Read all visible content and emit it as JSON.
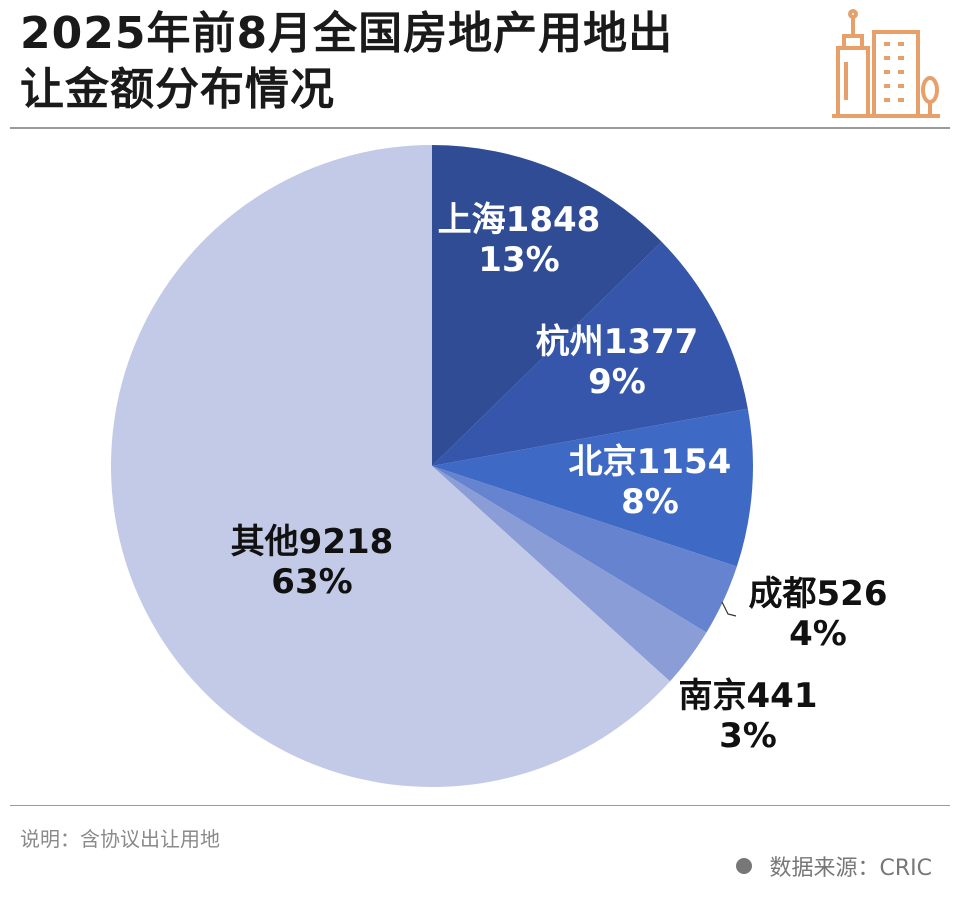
{
  "title_lines": [
    "2025年前8月全国房地产用地出",
    "让金额分布情况"
  ],
  "note": "说明：含协议出让用地",
  "source": "数据来源：CRIC",
  "icons": {
    "logo": "building-icon",
    "source_bullet": "dot-icon"
  },
  "chart_data": {
    "type": "pie",
    "start": "top",
    "direction": "clockwise",
    "categories": [
      "上海",
      "杭州",
      "北京",
      "成都",
      "南京",
      "其他"
    ],
    "values": [
      1848,
      1377,
      1154,
      526,
      441,
      9218
    ],
    "percent_labels": [
      "13%",
      "9%",
      "8%",
      "4%",
      "3%",
      "63%"
    ],
    "value_labels": [
      "上海1848",
      "杭州1377",
      "北京1154",
      "成都526",
      "南京441",
      "其他9218"
    ],
    "colors": [
      "#2f4c94",
      "#3556ab",
      "#3e6ac6",
      "#6583cf",
      "#8b9dd6",
      "#c3cae7"
    ],
    "legend": "none"
  }
}
